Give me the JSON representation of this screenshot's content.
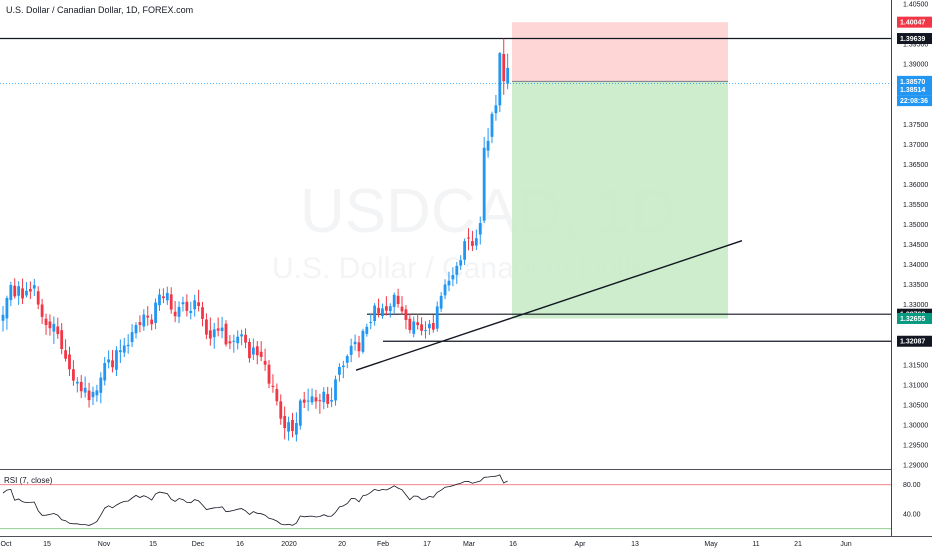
{
  "header": {
    "title": "U.S. Dollar / Canadian Dollar, 1D, FOREX.com"
  },
  "watermark": {
    "symbol": "USDCAD, 1D",
    "name": "U.S. Dollar / Canadian Dollar"
  },
  "rsi_label": "RSI (7, close)",
  "colors": {
    "up": "#2196f3",
    "down": "#f23645",
    "target_zone": "#c8ebc8",
    "stop_zone": "#ffd1d1",
    "grid": "#ffffff"
  },
  "chart_data": [
    {
      "type": "candlestick",
      "title": "U.S. Dollar / Canadian Dollar, 1D, FOREX.com",
      "x_tick_labels": [
        "Oct",
        "15",
        "Nov",
        "15",
        "Dec",
        "16",
        "2020",
        "20",
        "Feb",
        "17",
        "Mar",
        "16",
        "Apr",
        "13",
        "May",
        "11",
        "21",
        "Jun"
      ],
      "y_tick_labels": [
        "1.40500",
        "1.39500",
        "1.39000",
        "1.37500",
        "1.37000",
        "1.36500",
        "1.36000",
        "1.35500",
        "1.35000",
        "1.34500",
        "1.34000",
        "1.33500",
        "1.33000",
        "1.31500",
        "1.31000",
        "1.30500",
        "1.30000",
        "1.29500",
        "1.29000"
      ],
      "ylim": [
        1.289,
        1.406
      ],
      "price_badges": [
        {
          "label": "1.40047",
          "value": 1.40047,
          "color": "#f23645"
        },
        {
          "label": "1.39639",
          "value": 1.39639,
          "color": "#131722"
        },
        {
          "label": "1.38570",
          "value": 1.3857,
          "color": "#2196f3"
        },
        {
          "label": "1.38514",
          "value": 1.38514,
          "color": "#2196f3"
        },
        {
          "label": "22:08:36",
          "value": 1.3828,
          "color": "#2196f3"
        },
        {
          "label": "1.32762",
          "value": 1.32762,
          "color": "#131722"
        },
        {
          "label": "1.32655",
          "value": 1.32655,
          "color": "#089981"
        },
        {
          "label": "1.32087",
          "value": 1.32087,
          "color": "#131722"
        }
      ],
      "horizontal_lines": [
        1.39639,
        1.32762,
        1.32087
      ],
      "current_price_line": 1.38514,
      "position": {
        "entry": 1.3857,
        "stop": 1.40047,
        "target": 1.32655
      },
      "trendline": {
        "from": 1.31365,
        "to": 1.34595
      },
      "candles": [
        [
          1.32599,
          1.32965,
          1.32329,
          1.32746
        ],
        [
          1.32656,
          1.33223,
          1.32374,
          1.33168
        ],
        [
          1.33114,
          1.33569,
          1.32964,
          1.33488
        ],
        [
          1.33473,
          1.33658,
          1.3315,
          1.33206
        ],
        [
          1.33222,
          1.33585,
          1.32994,
          1.3346
        ],
        [
          1.33406,
          1.33649,
          1.33015,
          1.33154
        ],
        [
          1.3323,
          1.33564,
          1.33177,
          1.33345
        ],
        [
          1.33391,
          1.33581,
          1.3314,
          1.33327
        ],
        [
          1.33402,
          1.33642,
          1.33215,
          1.33486
        ],
        [
          1.33334,
          1.33457,
          1.32887,
          1.33003
        ],
        [
          1.33003,
          1.33143,
          1.32516,
          1.32695
        ],
        [
          1.32649,
          1.32776,
          1.32245,
          1.32491
        ],
        [
          1.32579,
          1.32758,
          1.32228,
          1.32412
        ],
        [
          1.32328,
          1.32706,
          1.32022,
          1.32521
        ],
        [
          1.32456,
          1.32676,
          1.32147,
          1.32267
        ],
        [
          1.32362,
          1.3254,
          1.31764,
          1.31893
        ],
        [
          1.31862,
          1.32136,
          1.31582,
          1.31651
        ],
        [
          1.31758,
          1.31953,
          1.3122,
          1.31387
        ],
        [
          1.31389,
          1.31613,
          1.30975,
          1.31106
        ],
        [
          1.31034,
          1.31193,
          1.3081,
          1.31075
        ],
        [
          1.31071,
          1.31243,
          1.30669,
          1.30839
        ],
        [
          1.30807,
          1.31207,
          1.30679,
          1.30925
        ],
        [
          1.30856,
          1.31052,
          1.30432,
          1.30619
        ],
        [
          1.30691,
          1.30956,
          1.30497,
          1.30824
        ],
        [
          1.30739,
          1.31001,
          1.30577,
          1.30861
        ],
        [
          1.30801,
          1.31315,
          1.30539,
          1.3118
        ],
        [
          1.31107,
          1.31694,
          1.30985,
          1.31544
        ],
        [
          1.31558,
          1.31859,
          1.3141,
          1.31631
        ],
        [
          1.31611,
          1.31868,
          1.31308,
          1.31438
        ],
        [
          1.31374,
          1.31962,
          1.31218,
          1.31862
        ],
        [
          1.31815,
          1.32133,
          1.31544,
          1.31862
        ],
        [
          1.31804,
          1.32171,
          1.31692,
          1.31982
        ],
        [
          1.31963,
          1.32265,
          1.31776,
          1.31997
        ],
        [
          1.32067,
          1.32515,
          1.31941,
          1.32315
        ],
        [
          1.32287,
          1.32563,
          1.32157,
          1.32491
        ],
        [
          1.32562,
          1.32734,
          1.32311,
          1.32495
        ],
        [
          1.32455,
          1.32887,
          1.32345,
          1.32752
        ],
        [
          1.32725,
          1.32963,
          1.32474,
          1.32679
        ],
        [
          1.32627,
          1.32763,
          1.32359,
          1.32513
        ],
        [
          1.32544,
          1.33157,
          1.32388,
          1.33052
        ],
        [
          1.32987,
          1.33398,
          1.32845,
          1.33252
        ],
        [
          1.33206,
          1.33407,
          1.33036,
          1.33162
        ],
        [
          1.3311,
          1.33449,
          1.32994,
          1.33292
        ],
        [
          1.33257,
          1.33434,
          1.32773,
          1.32877
        ],
        [
          1.32822,
          1.3309,
          1.32563,
          1.32712
        ],
        [
          1.32697,
          1.33083,
          1.3254,
          1.32942
        ],
        [
          1.33012,
          1.33198,
          1.32828,
          1.33058
        ],
        [
          1.33072,
          1.33259,
          1.32703,
          1.32845
        ],
        [
          1.32792,
          1.33071,
          1.32632,
          1.32842
        ],
        [
          1.32883,
          1.33246,
          1.32701,
          1.33109
        ],
        [
          1.33059,
          1.33372,
          1.32832,
          1.32966
        ],
        [
          1.32937,
          1.33069,
          1.32458,
          1.32645
        ],
        [
          1.3263,
          1.32785,
          1.32139,
          1.32252
        ],
        [
          1.32358,
          1.3268,
          1.31976,
          1.32155
        ],
        [
          1.32189,
          1.32545,
          1.31901,
          1.32384
        ],
        [
          1.32408,
          1.32679,
          1.32208,
          1.32351
        ],
        [
          1.3234,
          1.32696,
          1.32162,
          1.32427
        ],
        [
          1.32524,
          1.3261,
          1.31954,
          1.32008
        ],
        [
          1.32083,
          1.32243,
          1.31889,
          1.32035
        ],
        [
          1.3209,
          1.32252,
          1.31801,
          1.32099
        ],
        [
          1.32038,
          1.32357,
          1.31881,
          1.32201
        ],
        [
          1.32208,
          1.32376,
          1.31986,
          1.3226
        ],
        [
          1.32248,
          1.32409,
          1.31915,
          1.32052
        ],
        [
          1.32069,
          1.32159,
          1.31553,
          1.31663
        ],
        [
          1.31755,
          1.32156,
          1.31618,
          1.31932
        ],
        [
          1.31962,
          1.32092,
          1.31513,
          1.31737
        ],
        [
          1.31824,
          1.32089,
          1.31593,
          1.31693
        ],
        [
          1.31598,
          1.31903,
          1.31347,
          1.31501
        ],
        [
          1.31501,
          1.31616,
          1.30918,
          1.31029
        ],
        [
          1.30977,
          1.31264,
          1.30801,
          1.30945
        ],
        [
          1.30894,
          1.31034,
          1.30485,
          1.3059
        ],
        [
          1.30587,
          1.30762,
          1.30004,
          1.30155
        ],
        [
          1.30221,
          1.30459,
          1.29637,
          1.29922
        ],
        [
          1.29833,
          1.30205,
          1.29608,
          1.30069
        ],
        [
          1.30123,
          1.30299,
          1.29689,
          1.29847
        ],
        [
          1.29759,
          1.30314,
          1.29587,
          1.30047
        ],
        [
          1.29981,
          1.30654,
          1.29884,
          1.30608
        ],
        [
          1.30631,
          1.30823,
          1.30422,
          1.30554
        ],
        [
          1.30589,
          1.30905,
          1.30346,
          1.30607
        ],
        [
          1.30561,
          1.30908,
          1.30497,
          1.30712
        ],
        [
          1.30687,
          1.30875,
          1.30404,
          1.30586
        ],
        [
          1.30617,
          1.30776,
          1.30277,
          1.30601
        ],
        [
          1.30567,
          1.30941,
          1.30391,
          1.30826
        ],
        [
          1.30769,
          1.3095,
          1.30424,
          1.30524
        ],
        [
          1.30582,
          1.30932,
          1.30443,
          1.30621
        ],
        [
          1.3061,
          1.31229,
          1.30481,
          1.31136
        ],
        [
          1.31251,
          1.31537,
          1.31082,
          1.31446
        ],
        [
          1.31441,
          1.31599,
          1.31165,
          1.31479
        ],
        [
          1.31551,
          1.31759,
          1.31414,
          1.31719
        ],
        [
          1.31747,
          1.32149,
          1.31564,
          1.31974
        ],
        [
          1.32015,
          1.32255,
          1.31849,
          1.32073
        ],
        [
          1.32059,
          1.32221,
          1.31681,
          1.31838
        ],
        [
          1.31823,
          1.32396,
          1.31775,
          1.32346
        ],
        [
          1.32269,
          1.32525,
          1.32202,
          1.32447
        ],
        [
          1.32543,
          1.32767,
          1.32386,
          1.32567
        ],
        [
          1.32591,
          1.33038,
          1.32477,
          1.32976
        ],
        [
          1.3292,
          1.33151,
          1.32678,
          1.32792
        ],
        [
          1.32714,
          1.33028,
          1.32648,
          1.32905
        ],
        [
          1.32962,
          1.33212,
          1.32728,
          1.32849
        ],
        [
          1.32838,
          1.33034,
          1.32678,
          1.3296
        ],
        [
          1.32943,
          1.33303,
          1.32788,
          1.33245
        ],
        [
          1.3322,
          1.33397,
          1.32924,
          1.33016
        ],
        [
          1.32949,
          1.33212,
          1.32755,
          1.32832
        ],
        [
          1.32882,
          1.32989,
          1.32386,
          1.32618
        ],
        [
          1.32648,
          1.32767,
          1.32283,
          1.32367
        ],
        [
          1.32272,
          1.32704,
          1.32188,
          1.32581
        ],
        [
          1.3256,
          1.32771,
          1.32378,
          1.3249
        ],
        [
          1.32509,
          1.32683,
          1.32233,
          1.32346
        ],
        [
          1.32352,
          1.32585,
          1.32153,
          1.32364
        ],
        [
          1.32412,
          1.32619,
          1.32243,
          1.32521
        ],
        [
          1.32542,
          1.32757,
          1.32303,
          1.32376
        ],
        [
          1.32401,
          1.33079,
          1.32328,
          1.32955
        ],
        [
          1.32901,
          1.33312,
          1.32818,
          1.33219
        ],
        [
          1.33232,
          1.33632,
          1.33139,
          1.33502
        ],
        [
          1.3348,
          1.33821,
          1.33335,
          1.33596
        ],
        [
          1.3363,
          1.33933,
          1.33457,
          1.33738
        ],
        [
          1.33743,
          1.34066,
          1.33519,
          1.33968
        ],
        [
          1.33974,
          1.34233,
          1.33864,
          1.34108
        ],
        [
          1.34121,
          1.34652,
          1.33989,
          1.34582
        ],
        [
          1.34676,
          1.34907,
          1.34356,
          1.34656
        ],
        [
          1.34585,
          1.34841,
          1.34337,
          1.34465
        ],
        [
          1.34474,
          1.34874,
          1.34364,
          1.34657
        ],
        [
          1.34748,
          1.35197,
          1.34501,
          1.35035
        ],
        [
          1.35099,
          1.37184,
          1.35039,
          1.36914
        ],
        [
          1.36841,
          1.37403,
          1.36667,
          1.37087
        ],
        [
          1.37187,
          1.37816,
          1.37029,
          1.3776
        ],
        [
          1.37776,
          1.38232,
          1.37588,
          1.37973
        ],
        [
          1.37973,
          1.39301,
          1.37804,
          1.39276
        ],
        [
          1.39253,
          1.39639,
          1.38235,
          1.38572
        ],
        [
          1.38512,
          1.39265,
          1.38376,
          1.38907
        ]
      ]
    },
    {
      "type": "line",
      "title": "RSI (7, close)",
      "y_tick_labels": [
        "80.00",
        "40.00"
      ],
      "ylim": [
        10,
        100
      ],
      "levels": [
        80,
        20
      ],
      "values": [
        68.6,
        72.6,
        73.5,
        58.8,
        60.4,
        56.6,
        55.6,
        55.8,
        56.3,
        44.4,
        38.2,
        38.4,
        39.4,
        40.7,
        38.3,
        32.1,
        30.8,
        27.3,
        26.6,
        26.7,
        25.5,
        25.5,
        24.4,
        26.6,
        29.8,
        38.5,
        48.1,
        51.2,
        48.4,
        52.2,
        55.1,
        57.2,
        57.6,
        61.8,
        65.3,
        62.5,
        64.9,
        62.8,
        58.9,
        67.4,
        69.9,
        68.9,
        67.8,
        60.2,
        57.2,
        61.1,
        59.6,
        55.8,
        55.4,
        59.6,
        57.8,
        52.3,
        46.2,
        47.2,
        48.5,
        48.7,
        49.8,
        43.2,
        43.8,
        44.9,
        46.5,
        47.4,
        44.3,
        39.3,
        43.3,
        40.9,
        40.4,
        38.3,
        34.2,
        32.9,
        30.4,
        26.4,
        25.1,
        26.0,
        24.6,
        27.6,
        37.4,
        36.2,
        36.8,
        37.1,
        35.9,
        36.6,
        39.1,
        36.9,
        37.1,
        42.2,
        49.7,
        51.0,
        54.3,
        61.1,
        61.0,
        56.7,
        64.9,
        66.1,
        69.5,
        73.7,
        71.8,
        73.5,
        72.7,
        75.3,
        78.5,
        75.3,
        73.0,
        66.2,
        59.3,
        64.5,
        64.2,
        59.9,
        60.5,
        64.1,
        62.8,
        69.4,
        72.4,
        76.5,
        77.4,
        78.6,
        80.7,
        81.9,
        84.3,
        84.5,
        82.0,
        83.5,
        85.0,
        90.0,
        90.4,
        91.1,
        91.6,
        93.3,
        82.3,
        85.0
      ]
    }
  ]
}
